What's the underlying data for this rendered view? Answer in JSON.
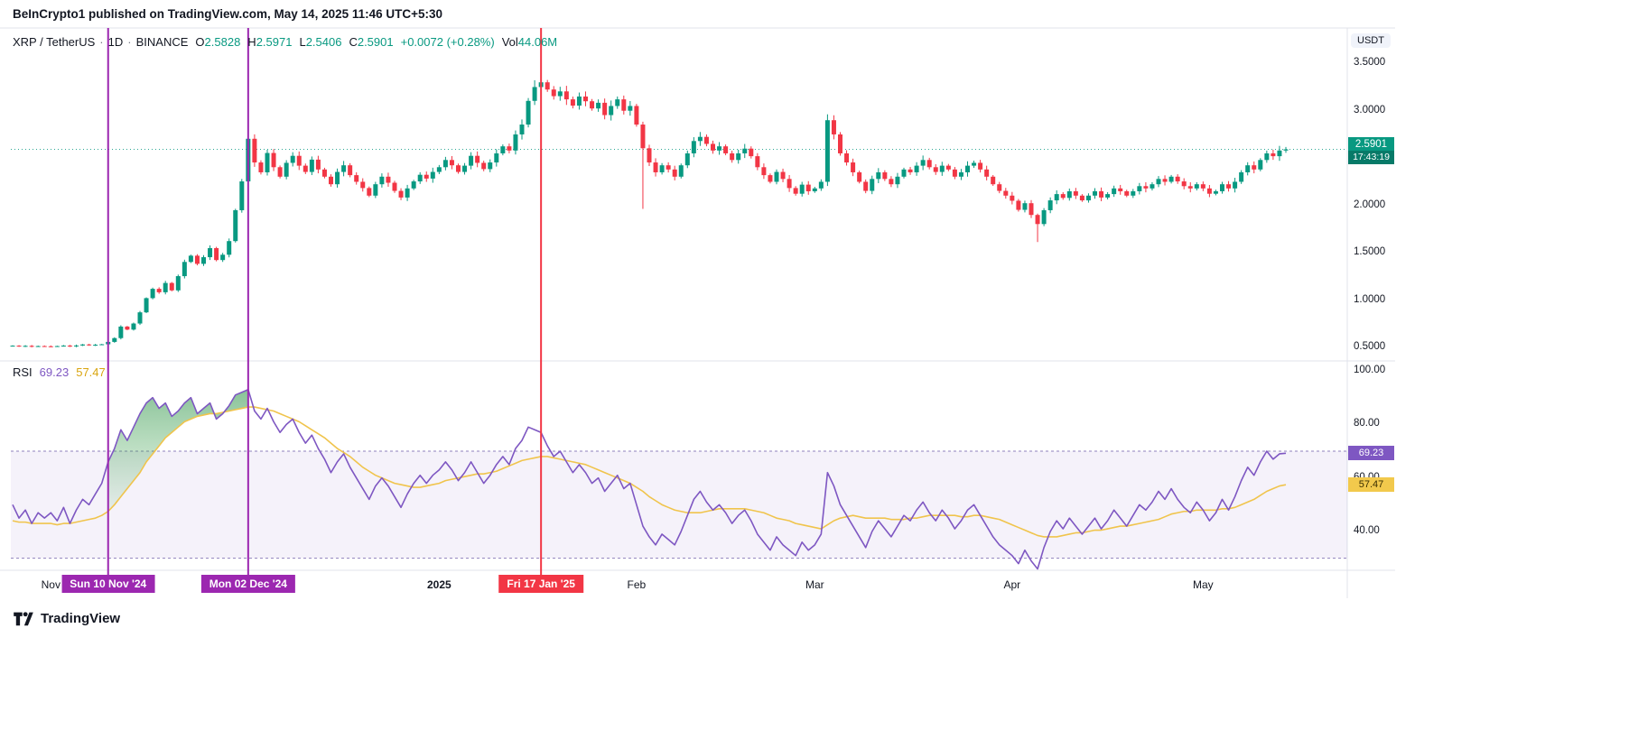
{
  "page": {
    "publish_line": "BeInCrypto1 published on TradingView.com, May 14, 2025 11:46 UTC+5:30",
    "watermark": "TradingView"
  },
  "price_pane": {
    "legend": {
      "symbol": "XRP / TetherUS",
      "sep": "·",
      "interval": "1D",
      "exchange": "BINANCE",
      "o_label": "O",
      "o": "2.5828",
      "h_label": "H",
      "h": "2.5971",
      "l_label": "L",
      "l": "2.5406",
      "c_label": "C",
      "c": "2.5901",
      "change": "+0.0072 (+0.28%)",
      "vol_label": "Vol",
      "vol": "44.06M"
    },
    "axis_unit": "USDT",
    "last_price_label": "2.5901",
    "countdown": "17:43:19"
  },
  "rsi_pane": {
    "legend_title": "RSI",
    "rsi_value": "69.23",
    "ma_value": "57.47"
  },
  "chart_data": [
    {
      "type": "candlestick",
      "symbol": "XRP/USDT",
      "exchange": "BINANCE",
      "interval": "1D",
      "x_axis": {
        "start": "2024-10-26",
        "end": "2025-05-14",
        "step_days": 1
      },
      "ohlc_today": {
        "open": 2.5828,
        "high": 2.5971,
        "low": 2.5406,
        "close": 2.5901,
        "change": 0.0072,
        "change_pct": 0.28,
        "volume": "44.06M"
      },
      "last_price": 2.5901,
      "first_open": 0.515,
      "wick_pct": 0.013,
      "colors": {
        "up": "#089981",
        "down": "#f23645"
      },
      "y_axis": {
        "unit": "USDT",
        "ticks": [
          {
            "label": "3.5000",
            "value": 3.5
          },
          {
            "label": "3.0000",
            "value": 3.0
          },
          {
            "label": "2.0000",
            "value": 2.0
          },
          {
            "label": "1.5000",
            "value": 1.5
          },
          {
            "label": "1.0000",
            "value": 1.0
          },
          {
            "label": "0.5000",
            "value": 0.5
          }
        ]
      },
      "x_ticks": [
        {
          "label": "Nov",
          "index": 6,
          "bold": false
        },
        {
          "label": "2025",
          "index": 67,
          "bold": true
        },
        {
          "label": "Feb",
          "index": 98,
          "bold": false
        },
        {
          "label": "Mar",
          "index": 126,
          "bold": false
        },
        {
          "label": "Apr",
          "index": 157,
          "bold": false
        },
        {
          "label": "May",
          "index": 187,
          "bold": false
        }
      ],
      "event_lines": [
        {
          "label": "Sun 10 Nov '24",
          "index": 15,
          "color": "#9c27b0"
        },
        {
          "label": "Mon 02 Dec '24",
          "index": 37,
          "color": "#9c27b0"
        },
        {
          "label": "Fri 17 Jan '25",
          "index": 83,
          "color": "#f23645"
        }
      ],
      "wick_overrides": {
        "37": {
          "h": 2.92
        },
        "82": {
          "h": 3.32
        },
        "83": {
          "h": 3.39
        },
        "99": {
          "l": 1.962
        },
        "128": {
          "h": 2.96
        },
        "161": {
          "l": 1.612
        }
      },
      "closes": [
        0.518,
        0.512,
        0.516,
        0.51,
        0.514,
        0.512,
        0.511,
        0.514,
        0.519,
        0.512,
        0.52,
        0.531,
        0.524,
        0.528,
        0.533,
        0.558,
        0.598,
        0.72,
        0.688,
        0.752,
        0.87,
        1.02,
        1.118,
        1.082,
        1.18,
        1.102,
        1.252,
        1.402,
        1.468,
        1.382,
        1.452,
        1.548,
        1.422,
        1.478,
        1.622,
        1.948,
        2.252,
        2.702,
        2.452,
        2.348,
        2.552,
        2.402,
        2.302,
        2.448,
        2.522,
        2.418,
        2.352,
        2.482,
        2.378,
        2.302,
        2.222,
        2.352,
        2.422,
        2.318,
        2.248,
        2.182,
        2.102,
        2.222,
        2.302,
        2.238,
        2.152,
        2.082,
        2.178,
        2.252,
        2.322,
        2.282,
        2.352,
        2.402,
        2.478,
        2.422,
        2.352,
        2.418,
        2.522,
        2.448,
        2.382,
        2.452,
        2.548,
        2.622,
        2.578,
        2.748,
        2.852,
        3.102,
        3.248,
        3.298,
        3.222,
        3.152,
        3.202,
        3.118,
        3.052,
        3.148,
        3.098,
        3.022,
        3.082,
        2.952,
        3.048,
        3.118,
        2.998,
        3.048,
        2.852,
        2.602,
        2.452,
        2.348,
        2.422,
        2.378,
        2.302,
        2.422,
        2.548,
        2.678,
        2.722,
        2.648,
        2.578,
        2.622,
        2.548,
        2.478,
        2.548,
        2.598,
        2.518,
        2.402,
        2.318,
        2.248,
        2.352,
        2.278,
        2.182,
        2.122,
        2.218,
        2.148,
        2.178,
        2.248,
        2.898,
        2.748,
        2.548,
        2.452,
        2.348,
        2.248,
        2.152,
        2.278,
        2.348,
        2.278,
        2.222,
        2.302,
        2.378,
        2.348,
        2.418,
        2.478,
        2.402,
        2.352,
        2.418,
        2.378,
        2.302,
        2.348,
        2.418,
        2.448,
        2.378,
        2.302,
        2.222,
        2.152,
        2.102,
        2.048,
        1.952,
        2.022,
        1.898,
        1.802,
        1.948,
        2.052,
        2.118,
        2.078,
        2.148,
        2.102,
        2.052,
        2.102,
        2.148,
        2.082,
        2.118,
        2.178,
        2.148,
        2.102,
        2.148,
        2.202,
        2.178,
        2.222,
        2.278,
        2.248,
        2.302,
        2.252,
        2.202,
        2.178,
        2.222,
        2.178,
        2.122,
        2.148,
        2.222,
        2.178,
        2.248,
        2.348,
        2.422,
        2.378,
        2.478,
        2.548,
        2.518,
        2.578,
        2.5901
      ]
    },
    {
      "type": "line",
      "title": "RSI",
      "y_ticks": [
        {
          "label": "100.00",
          "value": 100
        },
        {
          "label": "80.00",
          "value": 80
        },
        {
          "label": "60.00",
          "value": 60
        },
        {
          "label": "40.00",
          "value": 40
        }
      ],
      "bands": {
        "upper": 70,
        "lower": 30
      },
      "last_values": {
        "rsi": 69.23,
        "ma": 57.47
      },
      "highlight_fill_range": [
        15,
        37
      ],
      "series": [
        {
          "name": "RSI",
          "color": "#7e57c2",
          "values": [
            50,
            45,
            48,
            43,
            47,
            45,
            47,
            44,
            49,
            43,
            48,
            52,
            50,
            54,
            58,
            66,
            71,
            78,
            74,
            79,
            84,
            88,
            90,
            86,
            88,
            83,
            85,
            88,
            90,
            84,
            86,
            88,
            82,
            84,
            87,
            91,
            92,
            93,
            85,
            82,
            86,
            81,
            77,
            80,
            82,
            77,
            73,
            76,
            71,
            67,
            62,
            66,
            69,
            64,
            60,
            56,
            52,
            57,
            60,
            57,
            53,
            49,
            54,
            58,
            61,
            58,
            61,
            63,
            66,
            63,
            59,
            62,
            66,
            62,
            58,
            61,
            65,
            68,
            65,
            71,
            74,
            79,
            78,
            77,
            72,
            68,
            70,
            66,
            62,
            65,
            62,
            58,
            60,
            55,
            58,
            61,
            56,
            58,
            50,
            42,
            38,
            35,
            39,
            37,
            35,
            40,
            46,
            52,
            55,
            51,
            48,
            50,
            47,
            43,
            46,
            48,
            44,
            39,
            36,
            33,
            38,
            35,
            33,
            31,
            36,
            33,
            35,
            39,
            62,
            57,
            50,
            46,
            42,
            38,
            34,
            40,
            44,
            41,
            38,
            42,
            46,
            44,
            48,
            51,
            47,
            44,
            48,
            45,
            41,
            44,
            48,
            50,
            46,
            42,
            38,
            35,
            33,
            31,
            28,
            33,
            29,
            26,
            34,
            40,
            44,
            41,
            45,
            42,
            39,
            42,
            45,
            41,
            44,
            48,
            45,
            42,
            46,
            50,
            48,
            51,
            55,
            52,
            56,
            52,
            49,
            47,
            51,
            48,
            44,
            47,
            52,
            48,
            53,
            59,
            64,
            61,
            66,
            70,
            67,
            69,
            69.23
          ]
        },
        {
          "name": "RSI-based MA",
          "color": "#f0c44c",
          "values": [
            44,
            43.5,
            43.5,
            43,
            43,
            43,
            43,
            42.5,
            43,
            43,
            43.5,
            44,
            44.5,
            45,
            46,
            47.5,
            50,
            53,
            56,
            59,
            62,
            66,
            69,
            72,
            75,
            77,
            79,
            81,
            82,
            83,
            83.5,
            84,
            84,
            84.5,
            85,
            85.5,
            86,
            86.5,
            86.5,
            86,
            85.5,
            85,
            84,
            83,
            82,
            81,
            79.5,
            78,
            76.5,
            75,
            73,
            71,
            69.5,
            68,
            66,
            64,
            62.5,
            61,
            60,
            59,
            58,
            57.5,
            57,
            56.5,
            56.5,
            57,
            57.5,
            58,
            59,
            59.5,
            60,
            60.5,
            61,
            61.5,
            61.5,
            62,
            62.5,
            63.5,
            64.5,
            65.5,
            66.5,
            67,
            67.5,
            68,
            68,
            67.5,
            67,
            66.5,
            66,
            65.5,
            65,
            64,
            63,
            62,
            61,
            60,
            59,
            58,
            56.5,
            55,
            53,
            51.5,
            50,
            49,
            48,
            47.5,
            47,
            47,
            47,
            47.5,
            48,
            48.5,
            48.5,
            48.5,
            48.5,
            48.5,
            48,
            47.5,
            47,
            46,
            45,
            44.5,
            44,
            43,
            42.5,
            42,
            41.5,
            41,
            42.5,
            44,
            45,
            45.5,
            46,
            45.5,
            45,
            45,
            45,
            45,
            44.5,
            44.5,
            44.5,
            45,
            45,
            45.5,
            46,
            46,
            46,
            46,
            46,
            45.5,
            45.5,
            46,
            46,
            45.5,
            45,
            44.5,
            43.5,
            42.5,
            41.5,
            40.5,
            39.5,
            38.5,
            38,
            38,
            38,
            38.5,
            39,
            39.5,
            39.5,
            40,
            40.5,
            40.5,
            41,
            41.5,
            42,
            42,
            42.5,
            43,
            43.5,
            44,
            44.5,
            45.5,
            46.5,
            47,
            47.5,
            47.5,
            48,
            48,
            48,
            48,
            48.5,
            48.5,
            49,
            50,
            51,
            52,
            53.5,
            55,
            56,
            57,
            57.47
          ]
        }
      ]
    }
  ]
}
